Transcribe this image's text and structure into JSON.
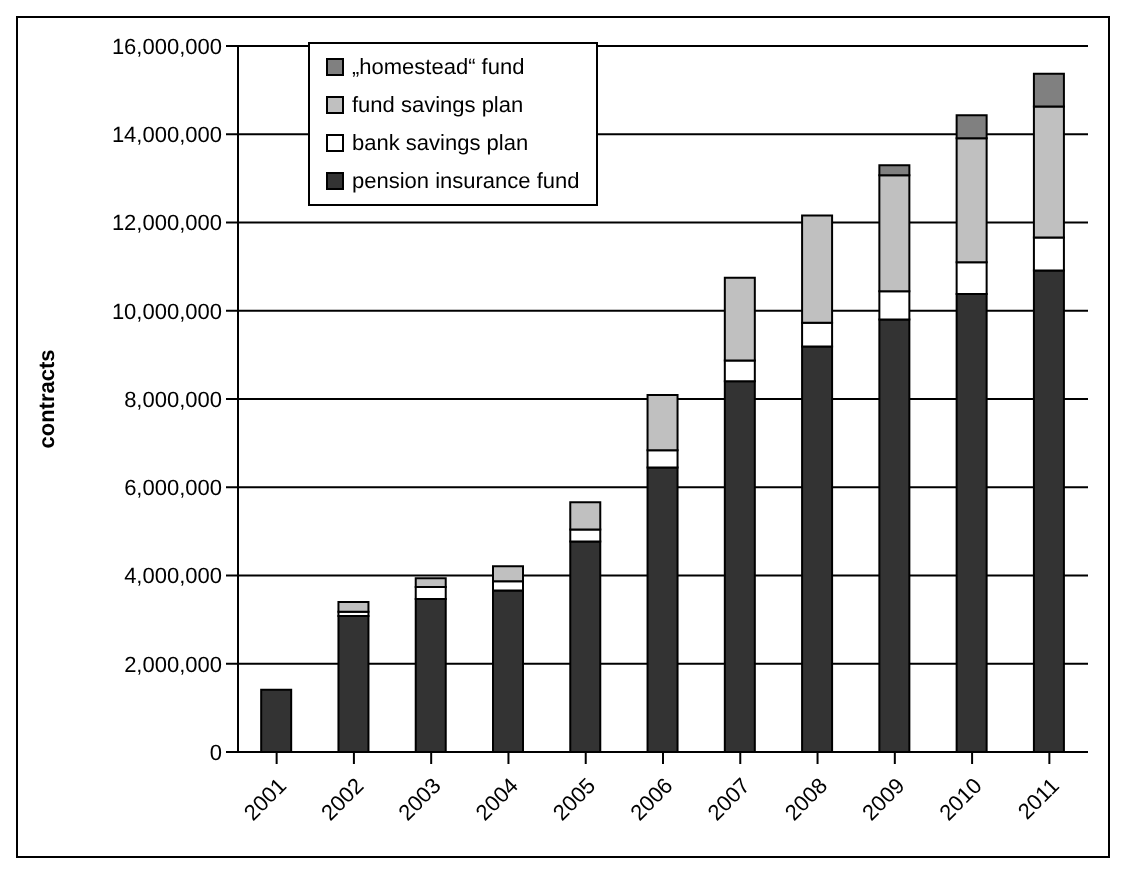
{
  "chart_data": {
    "type": "bar",
    "stacked": true,
    "ylabel": "contracts",
    "categories": [
      "2001",
      "2002",
      "2003",
      "2004",
      "2005",
      "2006",
      "2007",
      "2008",
      "2009",
      "2010",
      "2011"
    ],
    "series": [
      {
        "name": "pension insurance fund",
        "color": "#333333",
        "values": [
          1410000,
          3080000,
          3470000,
          3660000,
          4770000,
          6450000,
          8400000,
          9190000,
          9800000,
          10380000,
          10910000
        ]
      },
      {
        "name": "bank savings plan",
        "color": "#ffffff",
        "values": [
          0,
          100000,
          270000,
          210000,
          270000,
          390000,
          470000,
          540000,
          640000,
          720000,
          750000
        ]
      },
      {
        "name": "fund savings plan",
        "color": "#c0c0c0",
        "values": [
          0,
          220000,
          200000,
          340000,
          620000,
          1250000,
          1880000,
          2430000,
          2630000,
          2810000,
          2970000
        ]
      },
      {
        "name": "„homestead“ fund",
        "color": "#808080",
        "values": [
          0,
          0,
          0,
          0,
          0,
          0,
          0,
          0,
          230000,
          520000,
          740000
        ]
      }
    ],
    "ylim": [
      0,
      16000000
    ],
    "yticks": [
      {
        "value": 0,
        "label": "0"
      },
      {
        "value": 2000000,
        "label": "2,000,000"
      },
      {
        "value": 4000000,
        "label": "4,000,000"
      },
      {
        "value": 6000000,
        "label": "6,000,000"
      },
      {
        "value": 8000000,
        "label": "8,000,000"
      },
      {
        "value": 10000000,
        "label": "10,000,000"
      },
      {
        "value": 12000000,
        "label": "12,000,000"
      },
      {
        "value": 14000000,
        "label": "14,000,000"
      },
      {
        "value": 16000000,
        "label": "16,000,000"
      }
    ],
    "grid": "y",
    "legend": "top left"
  }
}
